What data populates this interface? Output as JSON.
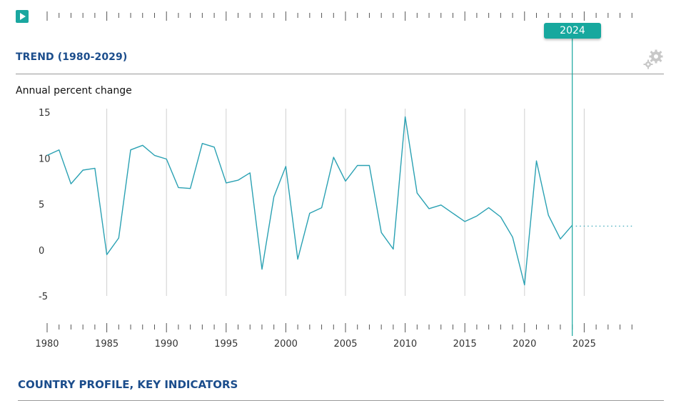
{
  "timeline": {
    "play_icon": "play-icon",
    "selected_year": "2024"
  },
  "header": {
    "title": "TREND (1980-2029)",
    "settings_icon": "gear-icon"
  },
  "profile": {
    "title": "COUNTRY PROFILE, KEY INDICATORS"
  },
  "colors": {
    "accent": "#17a89e",
    "title": "#1b4d8c",
    "line": "#2aa1b3"
  },
  "chart_data": {
    "type": "line",
    "title": "TREND (1980-2029)",
    "ylabel": "Annual percent change",
    "xlabel": "",
    "xlim": [
      1980,
      2029
    ],
    "ylim": [
      -5,
      15
    ],
    "yticks": [
      15,
      10,
      5,
      0,
      -5
    ],
    "xticks": [
      1980,
      1985,
      1990,
      1995,
      2000,
      2005,
      2010,
      2015,
      2020,
      2025
    ],
    "grid": "vertical",
    "selected_year": 2024,
    "series": [
      {
        "style": "solid",
        "points": [
          [
            1980,
            10.3
          ],
          [
            1981,
            10.9
          ],
          [
            1982,
            7.2
          ],
          [
            1983,
            8.7
          ],
          [
            1984,
            8.9
          ],
          [
            1985,
            -0.5
          ],
          [
            1986,
            1.3
          ],
          [
            1987,
            10.9
          ],
          [
            1988,
            11.4
          ],
          [
            1989,
            10.3
          ],
          [
            1990,
            9.9
          ],
          [
            1991,
            6.8
          ],
          [
            1992,
            6.7
          ],
          [
            1993,
            11.6
          ],
          [
            1994,
            11.2
          ],
          [
            1995,
            7.3
          ],
          [
            1996,
            7.6
          ],
          [
            1997,
            8.4
          ],
          [
            1998,
            -2.1
          ],
          [
            1999,
            5.8
          ],
          [
            2000,
            9.1
          ],
          [
            2001,
            -1.0
          ],
          [
            2002,
            4.0
          ],
          [
            2003,
            4.6
          ],
          [
            2004,
            10.1
          ],
          [
            2005,
            7.5
          ],
          [
            2006,
            9.2
          ],
          [
            2007,
            9.2
          ],
          [
            2008,
            1.9
          ],
          [
            2009,
            0.1
          ],
          [
            2010,
            14.5
          ],
          [
            2011,
            6.2
          ],
          [
            2012,
            4.5
          ],
          [
            2013,
            4.9
          ],
          [
            2014,
            4.0
          ],
          [
            2015,
            3.1
          ],
          [
            2016,
            3.7
          ],
          [
            2017,
            4.6
          ],
          [
            2018,
            3.6
          ],
          [
            2019,
            1.4
          ],
          [
            2020,
            -3.8
          ],
          [
            2021,
            9.7
          ],
          [
            2022,
            3.8
          ],
          [
            2023,
            1.2
          ],
          [
            2024,
            2.7
          ]
        ]
      },
      {
        "style": "dotted",
        "points": [
          [
            2024,
            2.6
          ],
          [
            2025,
            2.6
          ],
          [
            2026,
            2.6
          ],
          [
            2027,
            2.6
          ],
          [
            2028,
            2.6
          ],
          [
            2029,
            2.6
          ]
        ]
      }
    ]
  }
}
